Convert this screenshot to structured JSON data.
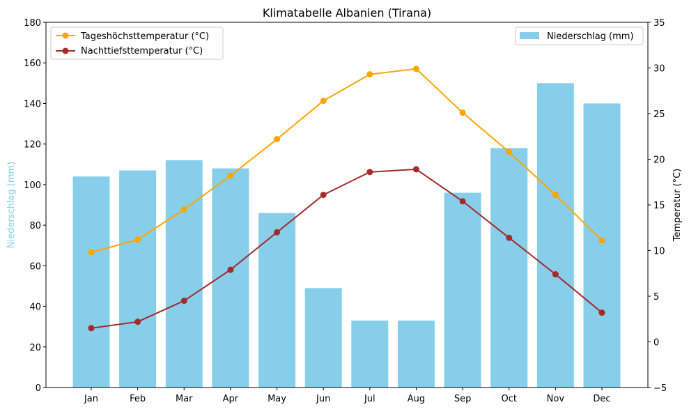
{
  "chart_data": {
    "type": "bar+line",
    "title": "Klimatabelle Albanien (Tirana)",
    "categories": [
      "Jan",
      "Feb",
      "Mar",
      "Apr",
      "May",
      "Jun",
      "Jul",
      "Aug",
      "Sep",
      "Oct",
      "Nov",
      "Dec"
    ],
    "bars": {
      "name": "Niederschlag (mm)",
      "axis": "left",
      "color": "#87CEEB",
      "values": [
        104,
        107,
        112,
        108,
        86,
        49,
        33,
        33,
        96,
        118,
        150,
        140
      ]
    },
    "series": [
      {
        "name": "Tageshöchsttemperatur (°C)",
        "axis": "right",
        "color": "#FFA500",
        "values": [
          9.8,
          11.2,
          14.5,
          18.2,
          22.2,
          26.4,
          29.3,
          29.9,
          25.1,
          20.8,
          16.1,
          11.1
        ]
      },
      {
        "name": "Nachttiefsttemperatur (°C)",
        "axis": "right",
        "color": "#A52A2A",
        "values": [
          1.5,
          2.2,
          4.5,
          7.9,
          12.0,
          16.1,
          18.6,
          18.9,
          15.4,
          11.4,
          7.4,
          3.2
        ]
      }
    ],
    "ylabel_left": "Niederschlag (mm)",
    "ylabel_right": "Temperatur (°C)",
    "ylim_left": [
      0,
      180
    ],
    "yticks_left": [
      0,
      20,
      40,
      60,
      80,
      100,
      120,
      140,
      160,
      180
    ],
    "ylim_right": [
      -5,
      35
    ],
    "yticks_right": [
      -5,
      0,
      5,
      10,
      15,
      20,
      25,
      30,
      35
    ],
    "legend_lines_position": "top-left",
    "legend_bars_position": "top-right",
    "grid": false
  }
}
